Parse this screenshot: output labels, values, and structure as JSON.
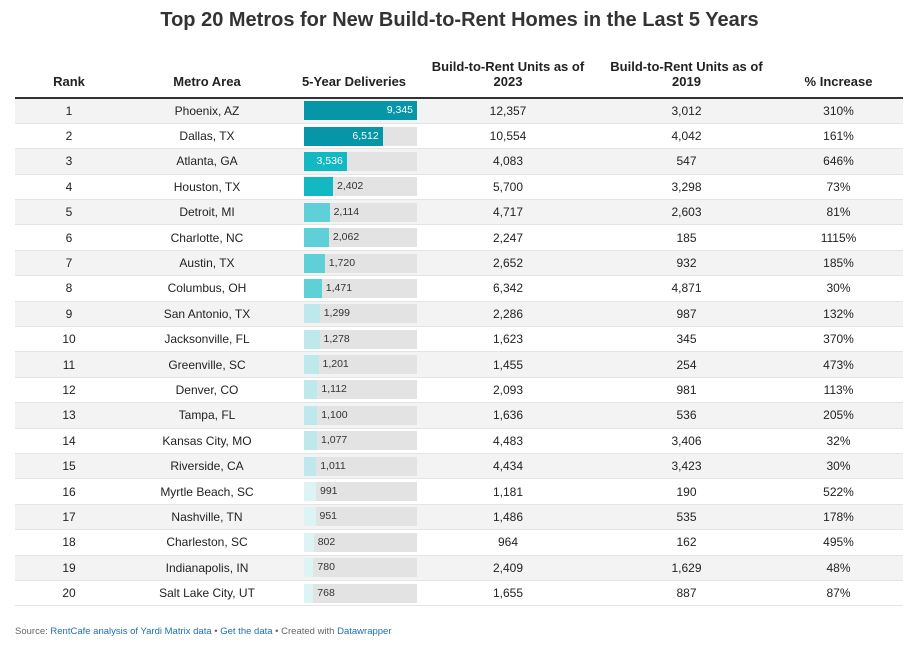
{
  "title": "Top 20 Metros for New Build-to-Rent Homes in the Last 5 Years",
  "columns": {
    "rank": "Rank",
    "metro": "Metro Area",
    "deliveries": "5-Year Deliveries",
    "units2023": "Build-to-Rent Units as of 2023",
    "units2019": "Build-to-Rent Units as of 2019",
    "increase": "% Increase"
  },
  "colors": {
    "bar_dark": "#0796a8",
    "bar_mid": "#12b8c2",
    "bar_light": "#5fd0d8",
    "bar_pale": "#bde9ec",
    "bar_faint": "#ddf4f5",
    "track": "#e3e3e3",
    "link": "#1d6fb8"
  },
  "chart_data": {
    "type": "table",
    "bar_column": "5-Year Deliveries",
    "bar_max": 9345,
    "rows": [
      {
        "rank": "1",
        "metro": "Phoenix, AZ",
        "deliveries": 9345,
        "deliveries_label": "9,345",
        "units2023": "12,357",
        "units2019": "3,012",
        "increase": "310%"
      },
      {
        "rank": "2",
        "metro": "Dallas, TX",
        "deliveries": 6512,
        "deliveries_label": "6,512",
        "units2023": "10,554",
        "units2019": "4,042",
        "increase": "161%"
      },
      {
        "rank": "3",
        "metro": "Atlanta, GA",
        "deliveries": 3536,
        "deliveries_label": "3,536",
        "units2023": "4,083",
        "units2019": "547",
        "increase": "646%"
      },
      {
        "rank": "4",
        "metro": "Houston, TX",
        "deliveries": 2402,
        "deliveries_label": "2,402",
        "units2023": "5,700",
        "units2019": "3,298",
        "increase": "73%"
      },
      {
        "rank": "5",
        "metro": "Detroit, MI",
        "deliveries": 2114,
        "deliveries_label": "2,114",
        "units2023": "4,717",
        "units2019": "2,603",
        "increase": "81%"
      },
      {
        "rank": "6",
        "metro": "Charlotte, NC",
        "deliveries": 2062,
        "deliveries_label": "2,062",
        "units2023": "2,247",
        "units2019": "185",
        "increase": "1115%"
      },
      {
        "rank": "7",
        "metro": "Austin, TX",
        "deliveries": 1720,
        "deliveries_label": "1,720",
        "units2023": "2,652",
        "units2019": "932",
        "increase": "185%"
      },
      {
        "rank": "8",
        "metro": "Columbus, OH",
        "deliveries": 1471,
        "deliveries_label": "1,471",
        "units2023": "6,342",
        "units2019": "4,871",
        "increase": "30%"
      },
      {
        "rank": "9",
        "metro": "San Antonio, TX",
        "deliveries": 1299,
        "deliveries_label": "1,299",
        "units2023": "2,286",
        "units2019": "987",
        "increase": "132%"
      },
      {
        "rank": "10",
        "metro": "Jacksonville, FL",
        "deliveries": 1278,
        "deliveries_label": "1,278",
        "units2023": "1,623",
        "units2019": "345",
        "increase": "370%"
      },
      {
        "rank": "11",
        "metro": "Greenville, SC",
        "deliveries": 1201,
        "deliveries_label": "1,201",
        "units2023": "1,455",
        "units2019": "254",
        "increase": "473%"
      },
      {
        "rank": "12",
        "metro": "Denver, CO",
        "deliveries": 1112,
        "deliveries_label": "1,112",
        "units2023": "2,093",
        "units2019": "981",
        "increase": "113%"
      },
      {
        "rank": "13",
        "metro": "Tampa, FL",
        "deliveries": 1100,
        "deliveries_label": "1,100",
        "units2023": "1,636",
        "units2019": "536",
        "increase": "205%"
      },
      {
        "rank": "14",
        "metro": "Kansas City, MO",
        "deliveries": 1077,
        "deliveries_label": "1,077",
        "units2023": "4,483",
        "units2019": "3,406",
        "increase": "32%"
      },
      {
        "rank": "15",
        "metro": "Riverside, CA",
        "deliveries": 1011,
        "deliveries_label": "1,011",
        "units2023": "4,434",
        "units2019": "3,423",
        "increase": "30%"
      },
      {
        "rank": "16",
        "metro": "Myrtle Beach, SC",
        "deliveries": 991,
        "deliveries_label": "991",
        "units2023": "1,181",
        "units2019": "190",
        "increase": "522%"
      },
      {
        "rank": "17",
        "metro": "Nashville, TN",
        "deliveries": 951,
        "deliveries_label": "951",
        "units2023": "1,486",
        "units2019": "535",
        "increase": "178%"
      },
      {
        "rank": "18",
        "metro": "Charleston, SC",
        "deliveries": 802,
        "deliveries_label": "802",
        "units2023": "964",
        "units2019": "162",
        "increase": "495%"
      },
      {
        "rank": "19",
        "metro": "Indianapolis, IN",
        "deliveries": 780,
        "deliveries_label": "780",
        "units2023": "2,409",
        "units2019": "1,629",
        "increase": "48%"
      },
      {
        "rank": "20",
        "metro": "Salt Lake City, UT",
        "deliveries": 768,
        "deliveries_label": "768",
        "units2023": "1,655",
        "units2019": "887",
        "increase": "87%"
      }
    ]
  },
  "footer": {
    "source_prefix": "Source: ",
    "source_link": "RentCafe analysis of Yardi Matrix data",
    "sep1": " • ",
    "get_data": "Get the data",
    "sep2": " • Created with ",
    "datawrapper": "Datawrapper"
  }
}
